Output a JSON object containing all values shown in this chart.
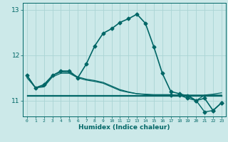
{
  "xlabel": "Humidex (Indice chaleur)",
  "ylabel": "",
  "bg_color": "#cce9e9",
  "line_color": "#006666",
  "grid_color": "#aad4d4",
  "xlim": [
    -0.5,
    23.5
  ],
  "ylim": [
    10.65,
    13.15
  ],
  "yticks": [
    11,
    12,
    13
  ],
  "xticks": [
    0,
    1,
    2,
    3,
    4,
    5,
    6,
    7,
    8,
    9,
    10,
    11,
    12,
    13,
    14,
    15,
    16,
    17,
    18,
    19,
    20,
    21,
    22,
    23
  ],
  "series": [
    {
      "x": [
        0,
        1,
        2,
        3,
        4,
        5,
        6,
        7,
        8,
        9,
        10,
        11,
        12,
        13,
        14,
        15,
        16,
        17,
        18,
        19,
        20,
        21,
        22,
        23
      ],
      "y": [
        11.55,
        11.28,
        11.35,
        11.55,
        11.65,
        11.65,
        11.5,
        11.8,
        12.2,
        12.48,
        12.58,
        12.72,
        12.8,
        12.9,
        12.7,
        12.18,
        11.6,
        11.2,
        11.15,
        11.1,
        11.0,
        11.05,
        10.78,
        10.95
      ],
      "marker": "D",
      "marker_size": 2.5,
      "lw": 1.2,
      "zorder": 5
    },
    {
      "x": [
        0,
        1,
        2,
        3,
        4,
        5,
        6,
        7,
        8,
        9,
        10,
        11,
        12,
        13,
        14,
        15,
        16,
        17,
        18,
        19,
        20,
        21,
        22,
        23
      ],
      "y": [
        11.1,
        11.1,
        11.1,
        11.1,
        11.1,
        11.1,
        11.1,
        11.1,
        11.1,
        11.1,
        11.1,
        11.1,
        11.1,
        11.1,
        11.1,
        11.1,
        11.1,
        11.1,
        11.1,
        11.1,
        11.1,
        11.1,
        11.1,
        11.1
      ],
      "marker": null,
      "marker_size": 0,
      "lw": 0.9,
      "zorder": 3
    },
    {
      "x": [
        0,
        1,
        2,
        3,
        4,
        5,
        6,
        7,
        8,
        9,
        10,
        11,
        12,
        13,
        14,
        15,
        16,
        17,
        18,
        19,
        20,
        21,
        22,
        23
      ],
      "y": [
        11.12,
        11.12,
        11.12,
        11.12,
        11.12,
        11.12,
        11.12,
        11.12,
        11.12,
        11.12,
        11.12,
        11.12,
        11.12,
        11.12,
        11.12,
        11.12,
        11.12,
        11.12,
        11.12,
        11.12,
        11.12,
        11.12,
        11.12,
        11.12
      ],
      "marker": null,
      "marker_size": 0,
      "lw": 0.9,
      "zorder": 3
    },
    {
      "x": [
        0,
        1,
        2,
        3,
        4,
        5,
        6,
        7,
        8,
        9,
        10,
        11,
        12,
        13,
        14,
        15,
        16,
        17,
        18,
        19,
        20,
        21,
        22,
        23
      ],
      "y": [
        11.5,
        11.28,
        11.3,
        11.52,
        11.6,
        11.6,
        11.5,
        11.45,
        11.42,
        11.38,
        11.3,
        11.22,
        11.18,
        11.15,
        11.13,
        11.12,
        11.12,
        11.12,
        11.12,
        11.12,
        11.12,
        11.12,
        11.12,
        11.12
      ],
      "marker": null,
      "marker_size": 0,
      "lw": 0.9,
      "zorder": 4
    },
    {
      "x": [
        0,
        1,
        2,
        3,
        4,
        5,
        6,
        7,
        8,
        9,
        10,
        11,
        12,
        13,
        14,
        15,
        16,
        17,
        18,
        19,
        20,
        21,
        22,
        23
      ],
      "y": [
        11.55,
        11.28,
        11.32,
        11.55,
        11.63,
        11.62,
        11.52,
        11.47,
        11.44,
        11.4,
        11.32,
        11.24,
        11.19,
        11.15,
        11.14,
        11.13,
        11.13,
        11.13,
        11.12,
        11.12,
        11.0,
        11.12,
        11.14,
        11.17
      ],
      "marker": null,
      "marker_size": 0,
      "lw": 0.9,
      "zorder": 4
    },
    {
      "x": [
        17,
        18,
        19,
        20,
        21,
        22,
        23
      ],
      "y": [
        11.12,
        11.12,
        11.05,
        11.0,
        10.75,
        10.78,
        10.95
      ],
      "marker": "D",
      "marker_size": 2.5,
      "lw": 1.0,
      "zorder": 5
    }
  ]
}
